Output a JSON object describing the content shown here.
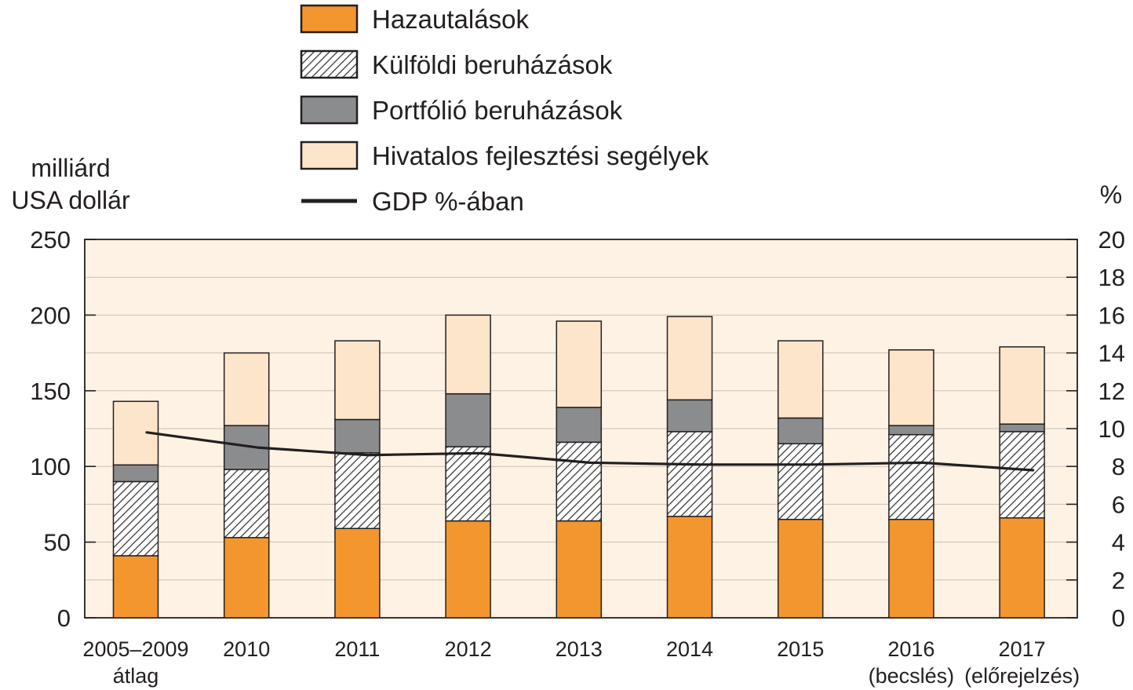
{
  "chart_data": {
    "type": "bar",
    "stacked": true,
    "categories": [
      [
        "2005–2009",
        "átlag"
      ],
      [
        "2010"
      ],
      [
        "2011"
      ],
      [
        "2012"
      ],
      [
        "2013"
      ],
      [
        "2014"
      ],
      [
        "2015"
      ],
      [
        "2016",
        "(becslés)"
      ],
      [
        "2017",
        "(előrejelzés)"
      ]
    ],
    "series": [
      {
        "name": "Hazautalások",
        "kind": "bar",
        "pattern": "solid",
        "color": "#f4962e",
        "values": [
          41,
          53,
          59,
          64,
          64,
          67,
          65,
          65,
          66
        ]
      },
      {
        "name": "Külföldi beruházások",
        "kind": "bar",
        "pattern": "hatch",
        "color": "#ffffff",
        "values": [
          49,
          45,
          50,
          49,
          52,
          56,
          50,
          56,
          57
        ]
      },
      {
        "name": "Portfólió beruházások",
        "kind": "bar",
        "pattern": "solid",
        "color": "#8a8c8e",
        "values": [
          11,
          29,
          22,
          35,
          23,
          21,
          17,
          6,
          5
        ]
      },
      {
        "name": "Hivatalos fejlesztési segélyek",
        "kind": "bar",
        "pattern": "solid",
        "color": "#fde5cc",
        "values": [
          42,
          48,
          52,
          52,
          57,
          55,
          51,
          50,
          51
        ]
      },
      {
        "name": "GDP %-ában",
        "kind": "line",
        "axis": "right",
        "color": "#231f20",
        "values": [
          9.8,
          9.0,
          8.6,
          8.7,
          8.2,
          8.1,
          8.1,
          8.2,
          7.8
        ]
      }
    ],
    "ylabel": [
      "milliárd",
      "USA dollár"
    ],
    "y2label": "%",
    "ylim": [
      0,
      250
    ],
    "yticks": [
      0,
      50,
      100,
      150,
      200,
      250
    ],
    "y2lim": [
      0,
      20
    ],
    "y2ticks": [
      0,
      2,
      4,
      6,
      8,
      10,
      12,
      14,
      16,
      18,
      20
    ],
    "grid": true,
    "legend": "top-center",
    "plot_background": "#fdf2e4"
  }
}
